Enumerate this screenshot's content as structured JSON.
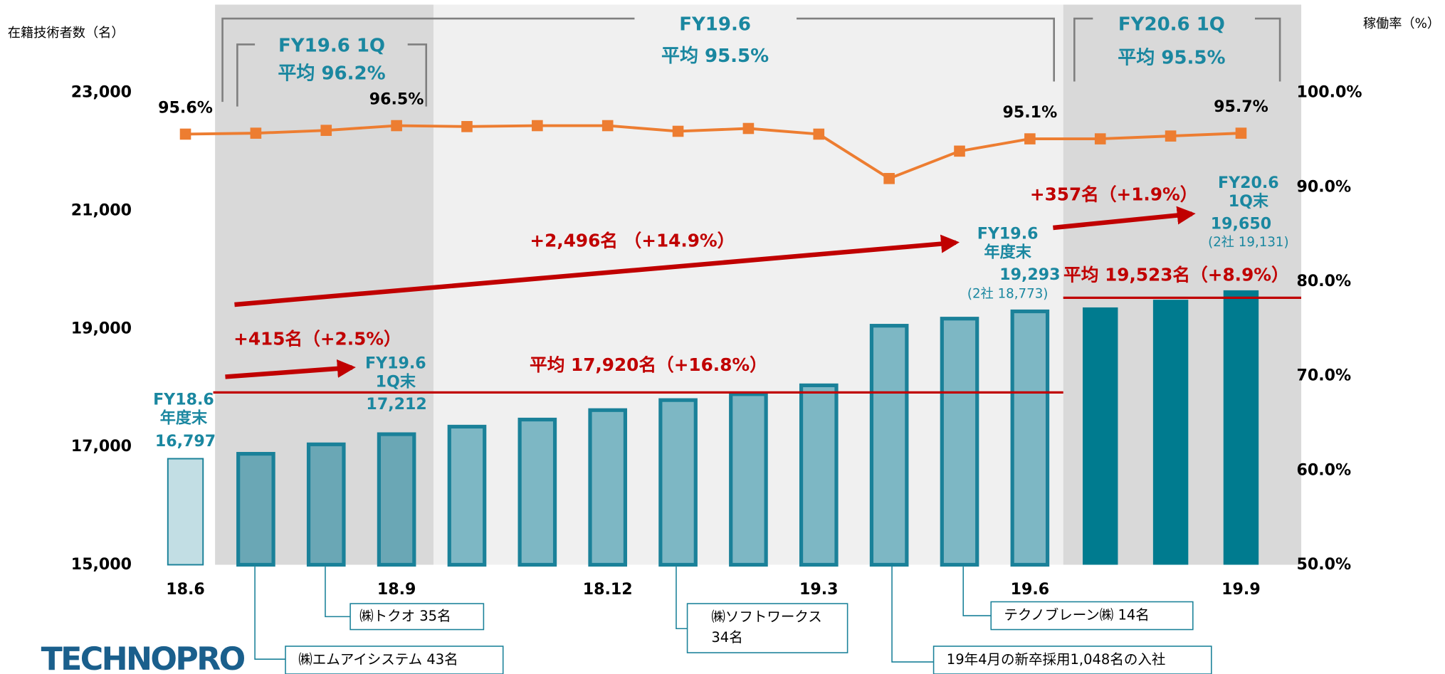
{
  "chart_data": {
    "type": "bar",
    "y_label": "在籍技術者数（名）",
    "y2_label": "稼働率（%）",
    "categories": [
      "18.6",
      null,
      null,
      "18.9",
      null,
      null,
      "18.12",
      null,
      null,
      "19.3",
      null,
      null,
      "19.6",
      null,
      null,
      "19.9"
    ],
    "values": [
      16797,
      16880,
      17040,
      17212,
      17340,
      17460,
      17620,
      17790,
      17890,
      18040,
      19050,
      19170,
      19293,
      19360,
      19490,
      19650
    ],
    "value_labels": [
      "16,797",
      null,
      null,
      "17,212",
      null,
      null,
      null,
      null,
      null,
      null,
      null,
      null,
      "19,293",
      null,
      null,
      "19,650"
    ],
    "colors": [
      "#c2dee4",
      "#6aa7b5",
      "#6aa7b5",
      "#6aa7b5",
      "#7db7c4",
      "#7db7c4",
      "#7db7c4",
      "#7db7c4",
      "#7db7c4",
      "#7db7c4",
      "#7db7c4",
      "#7db7c4",
      "#7db7c4",
      "#007b8f",
      "#007b8f",
      "#007b8f"
    ],
    "edge_color": "#1a8199",
    "ylim": [
      15000,
      23000
    ],
    "yticks": [
      {
        "value": 15000,
        "label": "15,000"
      },
      {
        "value": 17000,
        "label": "17,000"
      },
      {
        "value": 19000,
        "label": "19,000"
      },
      {
        "value": 21000,
        "label": "21,000"
      },
      {
        "value": 23000,
        "label": "23,000"
      }
    ],
    "y2lim": [
      50,
      100
    ],
    "y2ticks": [
      {
        "value": 50,
        "label": "50.0%"
      },
      {
        "value": 60,
        "label": "60.0%"
      },
      {
        "value": 70,
        "label": "70.0%"
      },
      {
        "value": 80,
        "label": "80.0%"
      },
      {
        "value": 90,
        "label": "90.0%"
      },
      {
        "value": 100,
        "label": "100.0%"
      }
    ],
    "line": {
      "type": "line",
      "axis": "y2",
      "color": "#ed7d31",
      "values": [
        95.6,
        95.7,
        96.0,
        96.5,
        96.4,
        96.5,
        96.5,
        95.9,
        96.2,
        95.6,
        90.9,
        93.8,
        95.1,
        95.1,
        95.4,
        95.7
      ],
      "value_labels": [
        "95.6%",
        null,
        null,
        "96.5%",
        null,
        null,
        null,
        null,
        null,
        null,
        null,
        null,
        "95.1%",
        null,
        null,
        "95.7%"
      ]
    },
    "avg_lines": [
      {
        "value": 17920,
        "label": "平均 17,920名（+16.8%）"
      },
      {
        "value": 19523,
        "label": "平均 19,523名（+8.9%）"
      }
    ],
    "periods": [
      {
        "title": "FY19.6 1Q",
        "avg": "平均 96.2%"
      },
      {
        "title": "FY19.6",
        "avg": "平均 95.5%"
      },
      {
        "title": "FY20.6 1Q",
        "avg": "平均 95.5%"
      }
    ],
    "growth": [
      "+415名（+2.5%）",
      "+2,496名 （+14.9%）",
      "+357名（+1.9%）"
    ],
    "bar_captions": [
      [
        "FY18.6",
        "年度末"
      ],
      [
        "FY19.6",
        "1Q末"
      ],
      [
        "FY19.6",
        "年度末"
      ],
      [
        "FY20.6",
        "1Q末"
      ]
    ],
    "sub_totals": [
      "(2社 18,773)",
      "(2社 19,131)"
    ],
    "callouts": [
      [
        "㈱トクオ 35名"
      ],
      [
        "㈱エムアイシステム 43名"
      ],
      [
        "㈱ソフトワークス",
        "34名"
      ],
      [
        "19年4月の新卒採用1,048名の入社"
      ],
      [
        "テクノブレーン㈱ 14名"
      ]
    ]
  },
  "logo": "TECHNOPRO"
}
